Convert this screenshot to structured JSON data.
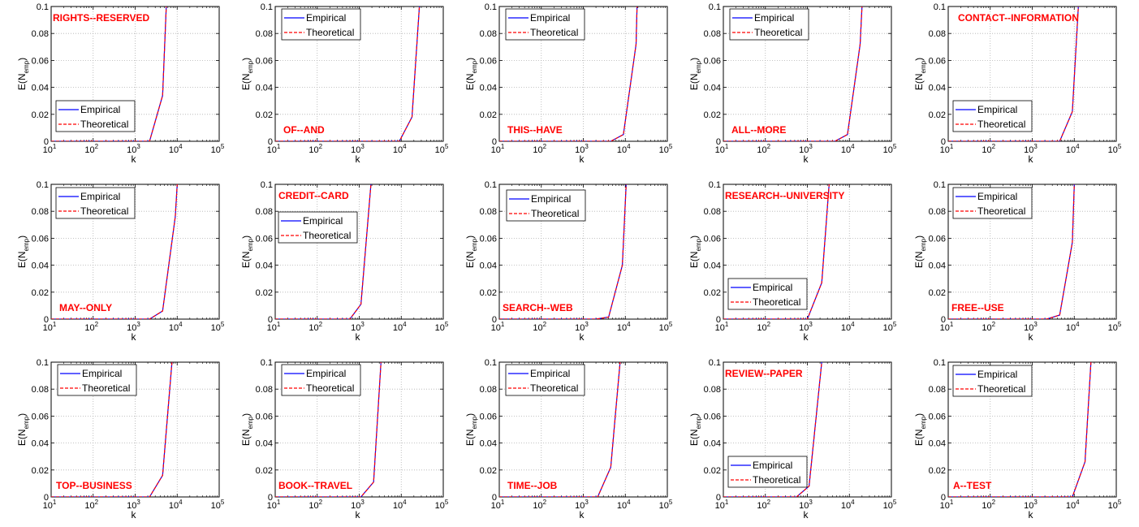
{
  "chart_data": [
    {
      "type": "line",
      "annotation": "RIGHTS--RESERVED",
      "xlabel": "k",
      "ylabel": "E(N_emp)",
      "xscale": "log",
      "xlim": [
        10,
        100000
      ],
      "ylim": [
        0,
        0.1
      ],
      "grid": true,
      "legend_position": "bottom-left",
      "xticks": [
        10,
        100,
        1000,
        10000,
        100000
      ],
      "yticks": [
        0,
        0.02,
        0.04,
        0.06,
        0.08,
        0.1
      ],
      "series": [
        {
          "name": "Empirical",
          "color": "#0000ff",
          "style": "solid",
          "x": [
            10,
            100,
            1000,
            2200,
            4500,
            5500
          ],
          "y": [
            0,
            0,
            0,
            0,
            0.034,
            0.1
          ]
        },
        {
          "name": "Theoretical",
          "color": "#ff0000",
          "style": "dashed",
          "x": [
            10,
            100,
            1000,
            2200,
            4500,
            5500
          ],
          "y": [
            0,
            0,
            0,
            0,
            0.034,
            0.1
          ]
        }
      ]
    },
    {
      "type": "line",
      "annotation": "OF--AND",
      "xlabel": "k",
      "ylabel": "E(N_emp)",
      "xscale": "log",
      "xlim": [
        10,
        100000
      ],
      "ylim": [
        0,
        0.1
      ],
      "grid": true,
      "legend_position": "top-left",
      "xticks": [
        10,
        100,
        1000,
        10000,
        100000
      ],
      "yticks": [
        0,
        0.02,
        0.04,
        0.06,
        0.08,
        0.1
      ],
      "series": [
        {
          "name": "Empirical",
          "color": "#0000ff",
          "style": "solid",
          "x": [
            10,
            100,
            1000,
            9000,
            18000,
            27000
          ],
          "y": [
            0,
            0,
            0,
            0,
            0.018,
            0.1
          ]
        },
        {
          "name": "Theoretical",
          "color": "#ff0000",
          "style": "dashed",
          "x": [
            10,
            100,
            1000,
            9000,
            18000,
            27000
          ],
          "y": [
            0,
            0,
            0,
            0,
            0.018,
            0.1
          ]
        }
      ]
    },
    {
      "type": "line",
      "annotation": "THIS--HAVE",
      "xlabel": "k",
      "ylabel": "E(N_emp)",
      "xscale": "log",
      "xlim": [
        10,
        100000
      ],
      "ylim": [
        0,
        0.1
      ],
      "grid": true,
      "legend_position": "top-left",
      "xticks": [
        10,
        100,
        1000,
        10000,
        100000
      ],
      "yticks": [
        0,
        0.02,
        0.04,
        0.06,
        0.08,
        0.1
      ],
      "series": [
        {
          "name": "Empirical",
          "color": "#0000ff",
          "style": "solid",
          "x": [
            10,
            100,
            1000,
            4500,
            9000,
            18000,
            19000
          ],
          "y": [
            0,
            0,
            0,
            0,
            0.005,
            0.072,
            0.1
          ]
        },
        {
          "name": "Theoretical",
          "color": "#ff0000",
          "style": "dashed",
          "x": [
            10,
            100,
            1000,
            4500,
            9000,
            18000,
            19000
          ],
          "y": [
            0,
            0,
            0,
            0,
            0.005,
            0.072,
            0.1
          ]
        }
      ]
    },
    {
      "type": "line",
      "annotation": "ALL--MORE",
      "xlabel": "k",
      "ylabel": "E(N_emp)",
      "xscale": "log",
      "xlim": [
        10,
        100000
      ],
      "ylim": [
        0,
        0.1
      ],
      "grid": true,
      "legend_position": "top-left",
      "xticks": [
        10,
        100,
        1000,
        10000,
        100000
      ],
      "yticks": [
        0,
        0.02,
        0.04,
        0.06,
        0.08,
        0.1
      ],
      "series": [
        {
          "name": "Empirical",
          "color": "#0000ff",
          "style": "solid",
          "x": [
            10,
            100,
            1000,
            4500,
            9000,
            18000,
            20000
          ],
          "y": [
            0,
            0,
            0,
            0,
            0.005,
            0.072,
            0.1
          ]
        },
        {
          "name": "Theoretical",
          "color": "#ff0000",
          "style": "dashed",
          "x": [
            10,
            100,
            1000,
            4500,
            9000,
            18000,
            20000
          ],
          "y": [
            0,
            0,
            0,
            0,
            0.005,
            0.072,
            0.1
          ]
        }
      ]
    },
    {
      "type": "line",
      "annotation": "CONTACT--INFORMATION",
      "xlabel": "k",
      "ylabel": "E(N_emp)",
      "xscale": "log",
      "xlim": [
        10,
        100000
      ],
      "ylim": [
        0,
        0.1
      ],
      "grid": true,
      "legend_position": "bottom-left",
      "xticks": [
        10,
        100,
        1000,
        10000,
        100000
      ],
      "yticks": [
        0,
        0.02,
        0.04,
        0.06,
        0.08,
        0.1
      ],
      "series": [
        {
          "name": "Empirical",
          "color": "#0000ff",
          "style": "solid",
          "x": [
            10,
            100,
            1000,
            4500,
            9000,
            12500
          ],
          "y": [
            0,
            0,
            0,
            0,
            0.022,
            0.1
          ]
        },
        {
          "name": "Theoretical",
          "color": "#ff0000",
          "style": "dashed",
          "x": [
            10,
            100,
            1000,
            4500,
            9000,
            12500
          ],
          "y": [
            0,
            0,
            0,
            0,
            0.022,
            0.1
          ]
        }
      ]
    },
    {
      "type": "line",
      "annotation": "MAY--ONLY",
      "xlabel": "k",
      "ylabel": "E(N_emp)",
      "xscale": "log",
      "xlim": [
        10,
        100000
      ],
      "ylim": [
        0,
        0.1
      ],
      "grid": true,
      "legend_position": "top-left",
      "xticks": [
        10,
        100,
        1000,
        10000,
        100000
      ],
      "yticks": [
        0,
        0.02,
        0.04,
        0.06,
        0.08,
        0.1
      ],
      "series": [
        {
          "name": "Empirical",
          "color": "#0000ff",
          "style": "solid",
          "x": [
            10,
            100,
            1000,
            2200,
            4500,
            9000,
            10000
          ],
          "y": [
            0,
            0,
            0,
            0,
            0.006,
            0.076,
            0.1
          ]
        },
        {
          "name": "Theoretical",
          "color": "#ff0000",
          "style": "dashed",
          "x": [
            10,
            100,
            1000,
            2200,
            4500,
            9000,
            10000
          ],
          "y": [
            0,
            0,
            0,
            0,
            0.006,
            0.076,
            0.1
          ]
        }
      ]
    },
    {
      "type": "line",
      "annotation": "CREDIT--CARD",
      "xlabel": "k",
      "ylabel": "E(N_emp)",
      "xscale": "log",
      "xlim": [
        10,
        100000
      ],
      "ylim": [
        0,
        0.1
      ],
      "grid": true,
      "legend_position": "top-left",
      "xticks": [
        10,
        100,
        1000,
        10000,
        100000
      ],
      "yticks": [
        0,
        0.02,
        0.04,
        0.06,
        0.08,
        0.1
      ],
      "series": [
        {
          "name": "Empirical",
          "color": "#0000ff",
          "style": "solid",
          "x": [
            10,
            100,
            600,
            1100,
            1900
          ],
          "y": [
            0,
            0,
            0,
            0.011,
            0.1
          ]
        },
        {
          "name": "Theoretical",
          "color": "#ff0000",
          "style": "dashed",
          "x": [
            10,
            100,
            600,
            1100,
            1900
          ],
          "y": [
            0,
            0,
            0,
            0.011,
            0.1
          ]
        }
      ]
    },
    {
      "type": "line",
      "annotation": "SEARCH--WEB",
      "xlabel": "k",
      "ylabel": "E(N_emp)",
      "xscale": "log",
      "xlim": [
        10,
        100000
      ],
      "ylim": [
        0,
        0.1
      ],
      "grid": true,
      "legend_position": "top-left",
      "xticks": [
        10,
        100,
        1000,
        10000,
        100000
      ],
      "yticks": [
        0,
        0.02,
        0.04,
        0.06,
        0.08,
        0.1
      ],
      "series": [
        {
          "name": "Empirical",
          "color": "#0000ff",
          "style": "solid",
          "x": [
            10,
            100,
            1000,
            2000,
            4000,
            8500,
            10500
          ],
          "y": [
            0,
            0,
            0,
            0,
            0.0015,
            0.04,
            0.1
          ]
        },
        {
          "name": "Theoretical",
          "color": "#ff0000",
          "style": "dashed",
          "x": [
            10,
            100,
            1000,
            2000,
            4000,
            8500,
            10500
          ],
          "y": [
            0,
            0,
            0,
            0,
            0.0015,
            0.04,
            0.1
          ]
        }
      ]
    },
    {
      "type": "line",
      "annotation": "RESEARCH--UNIVERSITY",
      "xlabel": "k",
      "ylabel": "E(N_emp)",
      "xscale": "log",
      "xlim": [
        10,
        100000
      ],
      "ylim": [
        0,
        0.1
      ],
      "grid": true,
      "legend_position": "bottom-left",
      "xticks": [
        10,
        100,
        1000,
        10000,
        100000
      ],
      "yticks": [
        0,
        0.02,
        0.04,
        0.06,
        0.08,
        0.1
      ],
      "series": [
        {
          "name": "Empirical",
          "color": "#0000ff",
          "style": "solid",
          "x": [
            10,
            100,
            1000,
            2200,
            3300
          ],
          "y": [
            0,
            0,
            0,
            0.027,
            0.1
          ]
        },
        {
          "name": "Theoretical",
          "color": "#ff0000",
          "style": "dashed",
          "x": [
            10,
            100,
            1000,
            2200,
            3300
          ],
          "y": [
            0,
            0,
            0,
            0.027,
            0.1
          ]
        }
      ]
    },
    {
      "type": "line",
      "annotation": "FREE--USE",
      "xlabel": "k",
      "ylabel": "E(N_emp)",
      "xscale": "log",
      "xlim": [
        10,
        100000
      ],
      "ylim": [
        0,
        0.1
      ],
      "grid": true,
      "legend_position": "top-left",
      "xticks": [
        10,
        100,
        1000,
        10000,
        100000
      ],
      "yticks": [
        0,
        0.02,
        0.04,
        0.06,
        0.08,
        0.1
      ],
      "series": [
        {
          "name": "Empirical",
          "color": "#0000ff",
          "style": "solid",
          "x": [
            10,
            100,
            1000,
            2200,
            4500,
            9000,
            10000
          ],
          "y": [
            0,
            0,
            0,
            0,
            0.003,
            0.057,
            0.1
          ]
        },
        {
          "name": "Theoretical",
          "color": "#ff0000",
          "style": "dashed",
          "x": [
            10,
            100,
            1000,
            2200,
            4500,
            9000,
            10000
          ],
          "y": [
            0,
            0,
            0,
            0,
            0.003,
            0.057,
            0.1
          ]
        }
      ]
    },
    {
      "type": "line",
      "annotation": "TOP--BUSINESS",
      "xlabel": "k",
      "ylabel": "E(N_emp)",
      "xscale": "log",
      "xlim": [
        10,
        100000
      ],
      "ylim": [
        0,
        0.1
      ],
      "grid": true,
      "legend_position": "top-left",
      "xticks": [
        10,
        100,
        1000,
        10000,
        100000
      ],
      "yticks": [
        0,
        0.02,
        0.04,
        0.06,
        0.08,
        0.1
      ],
      "series": [
        {
          "name": "Empirical",
          "color": "#0000ff",
          "style": "solid",
          "x": [
            10,
            100,
            1000,
            2200,
            4500,
            7500
          ],
          "y": [
            0,
            0,
            0,
            0,
            0.016,
            0.1
          ]
        },
        {
          "name": "Theoretical",
          "color": "#ff0000",
          "style": "dashed",
          "x": [
            10,
            100,
            1000,
            2200,
            4500,
            7500
          ],
          "y": [
            0,
            0,
            0,
            0,
            0.016,
            0.1
          ]
        }
      ]
    },
    {
      "type": "line",
      "annotation": "BOOK--TRAVEL",
      "xlabel": "k",
      "ylabel": "E(N_emp)",
      "xscale": "log",
      "xlim": [
        10,
        100000
      ],
      "ylim": [
        0,
        0.1
      ],
      "grid": true,
      "legend_position": "top-left",
      "xticks": [
        10,
        100,
        1000,
        10000,
        100000
      ],
      "yticks": [
        0,
        0.02,
        0.04,
        0.06,
        0.08,
        0.1
      ],
      "series": [
        {
          "name": "Empirical",
          "color": "#0000ff",
          "style": "solid",
          "x": [
            10,
            100,
            1100,
            2200,
            3300
          ],
          "y": [
            0,
            0,
            0,
            0.011,
            0.1
          ]
        },
        {
          "name": "Theoretical",
          "color": "#ff0000",
          "style": "dashed",
          "x": [
            10,
            100,
            1100,
            2200,
            3300
          ],
          "y": [
            0,
            0,
            0,
            0.011,
            0.1
          ]
        }
      ]
    },
    {
      "type": "line",
      "annotation": "TIME--JOB",
      "xlabel": "k",
      "ylabel": "E(N_emp)",
      "xscale": "log",
      "xlim": [
        10,
        100000
      ],
      "ylim": [
        0,
        0.1
      ],
      "grid": true,
      "legend_position": "top-left",
      "xticks": [
        10,
        100,
        1000,
        10000,
        100000
      ],
      "yticks": [
        0,
        0.02,
        0.04,
        0.06,
        0.08,
        0.1
      ],
      "series": [
        {
          "name": "Empirical",
          "color": "#0000ff",
          "style": "solid",
          "x": [
            10,
            100,
            1000,
            2200,
            4500,
            7500
          ],
          "y": [
            0,
            0,
            0,
            0,
            0.022,
            0.1
          ]
        },
        {
          "name": "Theoretical",
          "color": "#ff0000",
          "style": "dashed",
          "x": [
            10,
            100,
            1000,
            2200,
            4500,
            7500
          ],
          "y": [
            0,
            0,
            0,
            0,
            0.022,
            0.1
          ]
        }
      ]
    },
    {
      "type": "line",
      "annotation": "REVIEW--PAPER",
      "xlabel": "k",
      "ylabel": "E(N_emp)",
      "xscale": "log",
      "xlim": [
        10,
        100000
      ],
      "ylim": [
        0,
        0.1
      ],
      "grid": true,
      "legend_position": "bottom-left",
      "xticks": [
        10,
        100,
        1000,
        10000,
        100000
      ],
      "yticks": [
        0,
        0.02,
        0.04,
        0.06,
        0.08,
        0.1
      ],
      "series": [
        {
          "name": "Empirical",
          "color": "#0000ff",
          "style": "solid",
          "x": [
            10,
            100,
            550,
            1100,
            2200
          ],
          "y": [
            0,
            0,
            0,
            0.008,
            0.1
          ]
        },
        {
          "name": "Theoretical",
          "color": "#ff0000",
          "style": "dashed",
          "x": [
            10,
            100,
            550,
            1100,
            2200
          ],
          "y": [
            0,
            0,
            0,
            0.008,
            0.1
          ]
        }
      ]
    },
    {
      "type": "line",
      "annotation": "A--TEST",
      "xlabel": "k",
      "ylabel": "E(N_emp)",
      "xscale": "log",
      "xlim": [
        10,
        100000
      ],
      "ylim": [
        0,
        0.1
      ],
      "grid": true,
      "legend_position": "top-left",
      "xticks": [
        10,
        100,
        1000,
        10000,
        100000
      ],
      "yticks": [
        0,
        0.02,
        0.04,
        0.06,
        0.08,
        0.1
      ],
      "series": [
        {
          "name": "Empirical",
          "color": "#0000ff",
          "style": "solid",
          "x": [
            10,
            100,
            1000,
            9000,
            18000,
            25000
          ],
          "y": [
            0,
            0,
            0,
            0,
            0.026,
            0.1
          ]
        },
        {
          "name": "Theoretical",
          "color": "#ff0000",
          "style": "dashed",
          "x": [
            10,
            100,
            1000,
            9000,
            18000,
            25000
          ],
          "y": [
            0,
            0,
            0,
            0,
            0.026,
            0.1
          ]
        }
      ]
    }
  ]
}
